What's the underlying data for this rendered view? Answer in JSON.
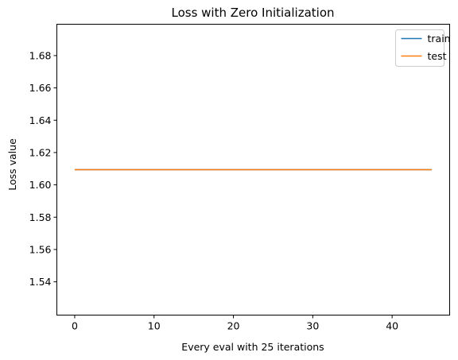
{
  "chart_data": {
    "type": "line",
    "title": "Loss with Zero Initialization",
    "xlabel": "Every eval with 25 iterations",
    "ylabel": "Loss value",
    "xlim": [
      -2.25,
      47.25
    ],
    "ylim": [
      1.5194,
      1.6994
    ],
    "xticks": [
      0,
      10,
      20,
      30,
      40
    ],
    "xtick_labels": [
      "0",
      "10",
      "20",
      "30",
      "40"
    ],
    "yticks": [
      1.54,
      1.56,
      1.58,
      1.6,
      1.62,
      1.64,
      1.66,
      1.68
    ],
    "ytick_labels": [
      "1.54",
      "1.56",
      "1.58",
      "1.60",
      "1.62",
      "1.64",
      "1.66",
      "1.68"
    ],
    "grid": false,
    "legend_position": "top-right",
    "series": [
      {
        "name": "train",
        "color": "#1f77b4",
        "x": [
          0,
          45
        ],
        "y": [
          1.6094,
          1.6094
        ]
      },
      {
        "name": "test",
        "color": "#ff7f0e",
        "x": [
          0,
          45
        ],
        "y": [
          1.6094,
          1.6094
        ]
      }
    ]
  }
}
